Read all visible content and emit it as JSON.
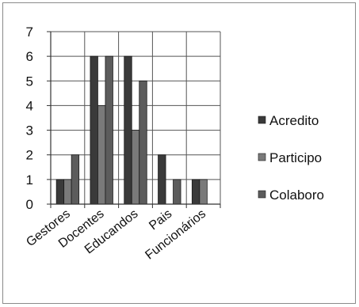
{
  "chart_data": {
    "type": "bar",
    "title": "",
    "xlabel": "",
    "ylabel": "",
    "ylim": [
      0,
      7
    ],
    "yticks": [
      0,
      1,
      2,
      3,
      4,
      5,
      6,
      7
    ],
    "grid": true,
    "legend_position": "right",
    "categories": [
      "Gestores",
      "Docentes",
      "Educandos",
      "Pais",
      "Funcionários"
    ],
    "series": [
      {
        "name": "Acredito",
        "color": "#3a3a3a",
        "values": [
          1,
          6,
          6,
          2,
          1
        ]
      },
      {
        "name": "Participo",
        "color": "#7a7a7a",
        "values": [
          1,
          4,
          3,
          0,
          1
        ]
      },
      {
        "name": "Colaboro",
        "color": "#5c5c5c",
        "values": [
          2,
          6,
          5,
          1,
          0
        ]
      }
    ]
  }
}
